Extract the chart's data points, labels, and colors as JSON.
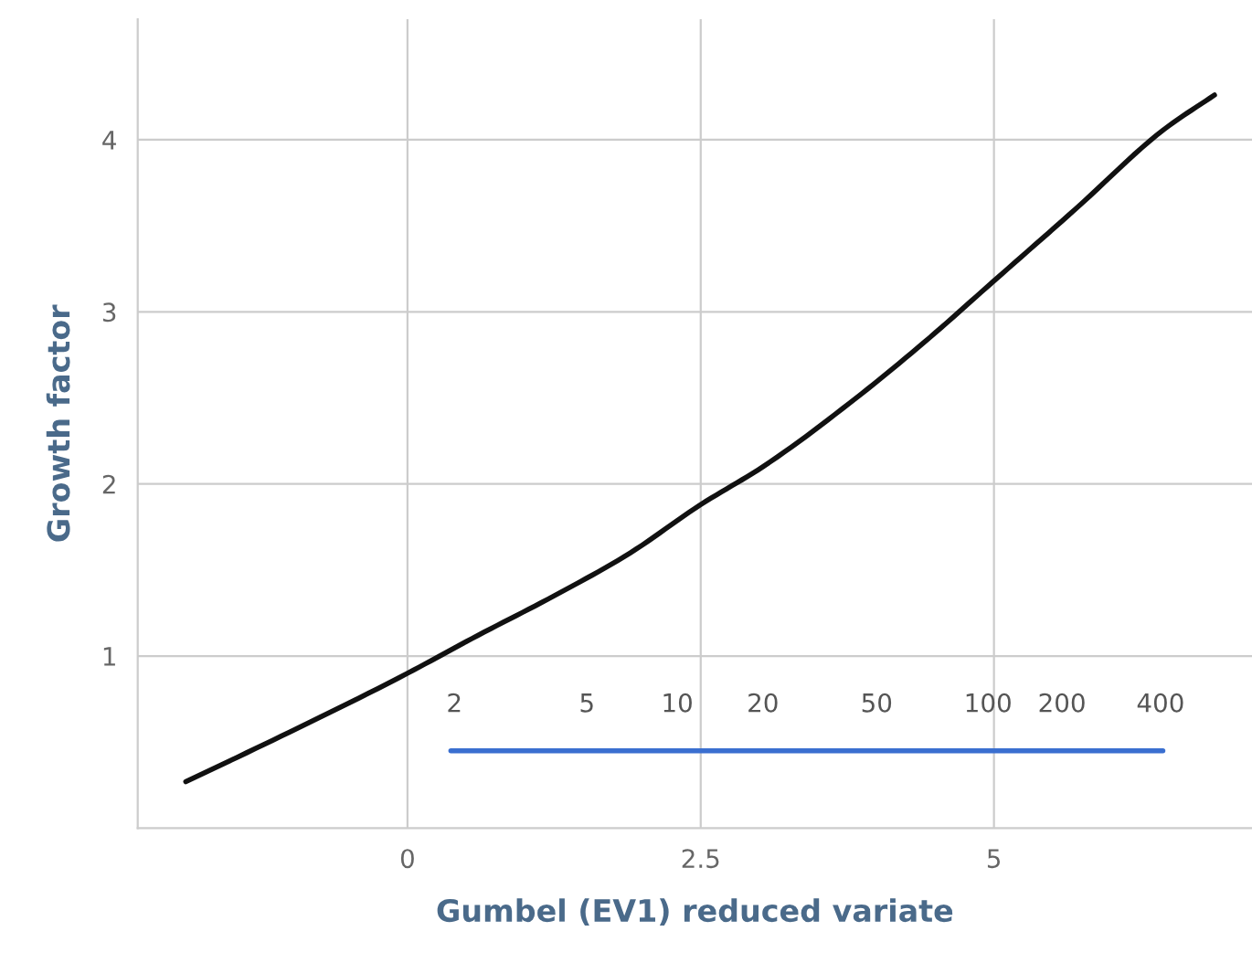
{
  "chart_data": {
    "type": "line",
    "xlabel": "Gumbel (EV1) reduced variate",
    "ylabel": "Growth factor",
    "xlim": [
      -2.3,
      7.2
    ],
    "ylim": [
      0,
      4.7
    ],
    "xticks": [
      0,
      2.5,
      5
    ],
    "yticks": [
      1,
      2,
      3,
      4
    ],
    "grid": true,
    "series": [
      {
        "color": "#111111",
        "x": [
          -1.89,
          -1.0,
          0,
          0.6,
          1.25,
          1.9,
          2.5,
          3.03,
          3.77,
          4.4,
          5,
          5.7,
          6.45,
          6.88
        ],
        "values": [
          0.27,
          0.56,
          0.9,
          1.12,
          1.35,
          1.6,
          1.88,
          2.1,
          2.47,
          2.82,
          3.18,
          3.6,
          4.06,
          4.26
        ]
      },
      {
        "color": "#3a6fd0",
        "x": [
          0.37,
          6.44
        ],
        "values": [
          0.45,
          0.45
        ]
      }
    ],
    "annotations": [
      {
        "text": "2",
        "x": 0.4,
        "y": 0.45
      },
      {
        "text": "5",
        "x": 1.53,
        "y": 0.45
      },
      {
        "text": "10",
        "x": 2.3,
        "y": 0.45
      },
      {
        "text": "20",
        "x": 3.03,
        "y": 0.45
      },
      {
        "text": "50",
        "x": 4.0,
        "y": 0.45
      },
      {
        "text": "100",
        "x": 4.95,
        "y": 0.45
      },
      {
        "text": "200",
        "x": 5.58,
        "y": 0.45
      },
      {
        "text": "400",
        "x": 6.42,
        "y": 0.45
      }
    ]
  }
}
